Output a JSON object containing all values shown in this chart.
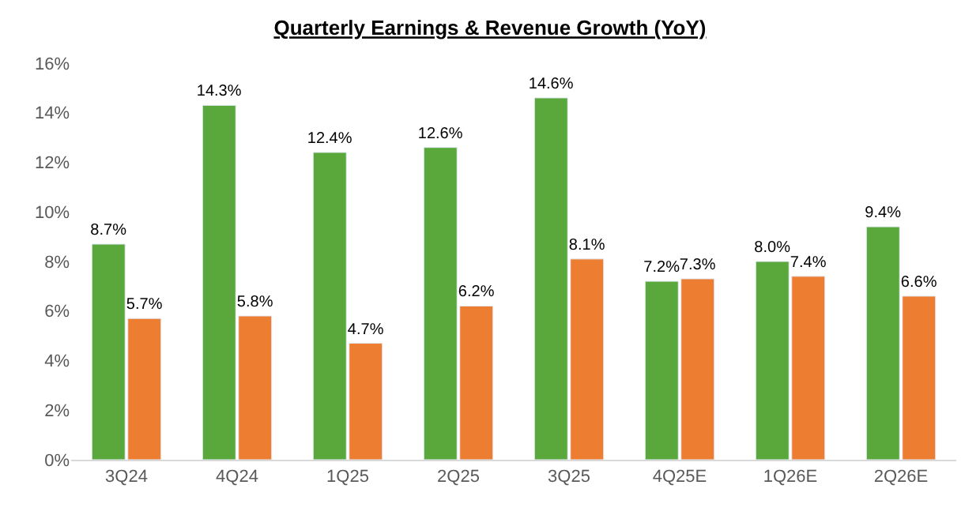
{
  "chart_data": {
    "type": "bar",
    "title": "Quarterly Earnings & Revenue Growth (YoY)",
    "categories": [
      "3Q24",
      "4Q24",
      "1Q25",
      "2Q25",
      "3Q25",
      "4Q25E",
      "1Q26E",
      "2Q26E"
    ],
    "series": [
      {
        "color": "#5aa83c",
        "values": [
          8.7,
          14.3,
          12.4,
          12.6,
          14.6,
          7.2,
          8.0,
          9.4
        ],
        "value_labels": [
          "8.7%",
          "14.3%",
          "12.4%",
          "12.6%",
          "14.6%",
          "7.2%",
          "8.0%",
          "9.4%"
        ]
      },
      {
        "color": "#ed7d31",
        "values": [
          5.7,
          5.8,
          4.7,
          6.2,
          8.1,
          7.3,
          7.4,
          6.6
        ],
        "value_labels": [
          "5.7%",
          "5.8%",
          "4.7%",
          "6.2%",
          "8.1%",
          "7.3%",
          "7.4%",
          "6.6%"
        ]
      }
    ],
    "ylim": [
      0,
      16
    ],
    "yticks": [
      {
        "value": 0,
        "label": "0%"
      },
      {
        "value": 2,
        "label": "2%"
      },
      {
        "value": 4,
        "label": "4%"
      },
      {
        "value": 6,
        "label": "6%"
      },
      {
        "value": 8,
        "label": "8%"
      },
      {
        "value": 10,
        "label": "10%"
      },
      {
        "value": 12,
        "label": "12%"
      },
      {
        "value": 14,
        "label": "14%"
      },
      {
        "value": 16,
        "label": "16%"
      }
    ],
    "legend": false
  }
}
